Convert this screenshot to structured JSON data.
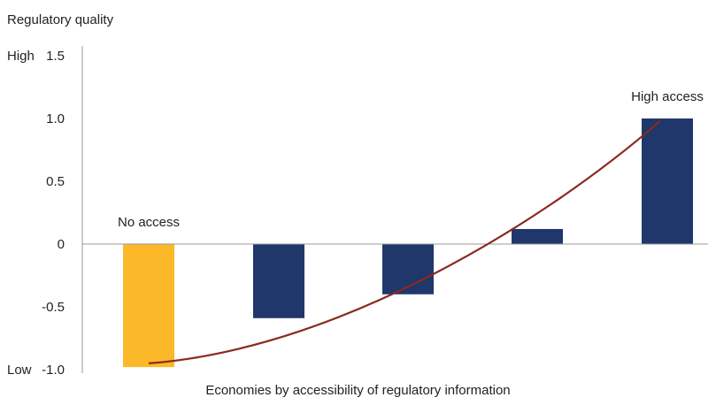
{
  "chart_data": {
    "type": "bar",
    "title": "",
    "ylabel": "Regulatory quality",
    "xlabel": "Economies by accessibility of regulatory information",
    "ylim": [
      -1.0,
      1.5
    ],
    "yticks": [
      "-1.0",
      "-0.5",
      "0",
      "0.5",
      "1.0",
      "1.5"
    ],
    "ytick_values": [
      -1.0,
      -0.5,
      0,
      0.5,
      1.0,
      1.5
    ],
    "y_extreme_labels": {
      "low": "Low",
      "high": "High"
    },
    "categories": [
      "",
      "",
      "",
      "",
      ""
    ],
    "values": [
      -0.98,
      -0.59,
      -0.4,
      0.12,
      1.0
    ],
    "bar_colors": [
      "#FBB829",
      "#1F376B",
      "#1F376B",
      "#1F376B",
      "#1F376B"
    ],
    "annotations": [
      {
        "text": "No access",
        "category_index": 0
      },
      {
        "text": "High access",
        "category_index": 4
      }
    ],
    "trend_line": {
      "color": "#8B2A1F",
      "from_value": -0.95,
      "to_value": 0.98
    },
    "grid": false,
    "legend": "none"
  }
}
